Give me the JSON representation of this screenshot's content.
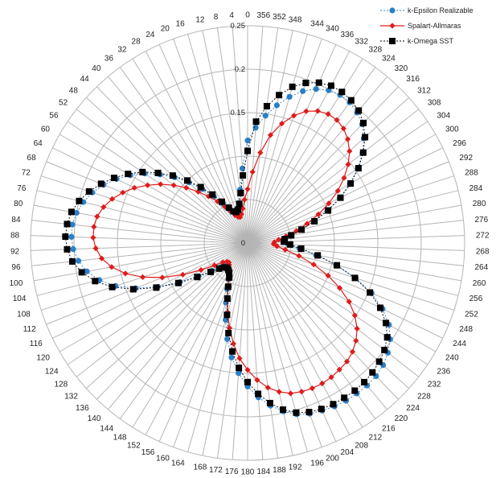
{
  "chart_data": {
    "type": "radar",
    "theta_direction": "counterclockwise",
    "theta_zero": "top",
    "angle_labels": [
      "0",
      "4",
      "8",
      "12",
      "16",
      "20",
      "24",
      "28",
      "32",
      "36",
      "40",
      "44",
      "48",
      "52",
      "56",
      "60",
      "64",
      "68",
      "72",
      "76",
      "80",
      "84",
      "88",
      "92",
      "96",
      "100",
      "104",
      "108",
      "112",
      "116",
      "120",
      "124",
      "128",
      "132",
      "136",
      "140",
      "144",
      "148",
      "152",
      "156",
      "160",
      "164",
      "168",
      "172",
      "176",
      "180",
      "184",
      "188",
      "192",
      "196",
      "200",
      "204",
      "208",
      "212",
      "216",
      "220",
      "224",
      "228",
      "232",
      "236",
      "240",
      "244",
      "248",
      "252",
      "256",
      "260",
      "264",
      "268",
      "272",
      "276",
      "280",
      "284",
      "288",
      "292",
      "296",
      "300",
      "304",
      "308",
      "312",
      "316",
      "320",
      "324",
      "328",
      "332",
      "336",
      "340",
      "344",
      "348",
      "352",
      "356"
    ],
    "radial_ticks": [
      0,
      0.05,
      0.1,
      0.15,
      0.2,
      0.25
    ],
    "radial_tick_labels": [
      "0",
      "",
      "",
      "0.15",
      "0.2",
      "0.25"
    ],
    "rlim": [
      0,
      0.25
    ],
    "grid": true,
    "legend_position": "top-right",
    "angles": [
      0,
      4,
      8,
      12,
      16,
      20,
      24,
      28,
      32,
      36,
      40,
      44,
      48,
      52,
      56,
      60,
      64,
      68,
      72,
      76,
      80,
      84,
      88,
      92,
      96,
      100,
      104,
      108,
      112,
      116,
      120,
      124,
      128,
      132,
      136,
      140,
      144,
      148,
      152,
      156,
      160,
      164,
      168,
      172,
      176,
      180,
      184,
      188,
      192,
      196,
      200,
      204,
      208,
      212,
      216,
      220,
      224,
      228,
      232,
      236,
      240,
      244,
      248,
      252,
      256,
      260,
      264,
      268,
      272,
      276,
      280,
      284,
      288,
      292,
      296,
      300,
      304,
      308,
      312,
      316,
      320,
      324,
      328,
      332,
      336,
      340,
      344,
      348,
      352,
      356
    ],
    "series": [
      {
        "name": "k-Epsilon Realizable",
        "color": "#2a7fc6",
        "marker": "circle",
        "line": "dotted",
        "values": [
          0.118,
          0.086,
          0.062,
          0.047,
          0.039,
          0.036,
          0.038,
          0.043,
          0.053,
          0.066,
          0.081,
          0.097,
          0.113,
          0.128,
          0.143,
          0.156,
          0.168,
          0.179,
          0.188,
          0.195,
          0.2,
          0.203,
          0.203,
          0.201,
          0.196,
          0.188,
          0.176,
          0.16,
          0.139,
          0.115,
          0.09,
          0.068,
          0.052,
          0.042,
          0.037,
          0.036,
          0.038,
          0.041,
          0.047,
          0.058,
          0.073,
          0.092,
          0.113,
          0.133,
          0.15,
          0.165,
          0.178,
          0.189,
          0.198,
          0.205,
          0.209,
          0.211,
          0.213,
          0.214,
          0.214,
          0.214,
          0.213,
          0.21,
          0.205,
          0.198,
          0.188,
          0.173,
          0.154,
          0.131,
          0.105,
          0.08,
          0.06,
          0.047,
          0.041,
          0.042,
          0.05,
          0.063,
          0.08,
          0.099,
          0.118,
          0.136,
          0.153,
          0.168,
          0.18,
          0.19,
          0.196,
          0.2,
          0.201,
          0.199,
          0.194,
          0.186,
          0.175,
          0.162,
          0.148,
          0.133
        ]
      },
      {
        "name": "Spalart-Allmaras",
        "color": "#e01b1b",
        "marker": "diamond",
        "line": "solid",
        "values": [
          0.062,
          0.05,
          0.04,
          0.034,
          0.031,
          0.032,
          0.035,
          0.041,
          0.049,
          0.059,
          0.07,
          0.082,
          0.095,
          0.108,
          0.121,
          0.133,
          0.145,
          0.155,
          0.164,
          0.171,
          0.176,
          0.178,
          0.178,
          0.175,
          0.169,
          0.159,
          0.145,
          0.127,
          0.106,
          0.083,
          0.062,
          0.046,
          0.036,
          0.032,
          0.031,
          0.033,
          0.036,
          0.04,
          0.047,
          0.056,
          0.068,
          0.083,
          0.1,
          0.117,
          0.133,
          0.146,
          0.158,
          0.168,
          0.175,
          0.18,
          0.182,
          0.183,
          0.183,
          0.182,
          0.18,
          0.178,
          0.174,
          0.168,
          0.16,
          0.149,
          0.135,
          0.118,
          0.1,
          0.08,
          0.061,
          0.044,
          0.034,
          0.03,
          0.031,
          0.036,
          0.045,
          0.058,
          0.072,
          0.088,
          0.104,
          0.12,
          0.134,
          0.147,
          0.158,
          0.166,
          0.172,
          0.175,
          0.175,
          0.172,
          0.166,
          0.156,
          0.143,
          0.127,
          0.105,
          0.082
        ]
      },
      {
        "name": "k-Omega SST",
        "color": "#000000",
        "marker": "square",
        "line": "dotted",
        "values": [
          0.106,
          0.078,
          0.058,
          0.046,
          0.04,
          0.038,
          0.04,
          0.046,
          0.056,
          0.069,
          0.084,
          0.1,
          0.116,
          0.131,
          0.146,
          0.159,
          0.171,
          0.182,
          0.192,
          0.2,
          0.206,
          0.209,
          0.21,
          0.208,
          0.203,
          0.194,
          0.181,
          0.164,
          0.142,
          0.117,
          0.092,
          0.07,
          0.054,
          0.044,
          0.039,
          0.037,
          0.038,
          0.04,
          0.045,
          0.055,
          0.068,
          0.086,
          0.106,
          0.126,
          0.144,
          0.16,
          0.174,
          0.186,
          0.196,
          0.203,
          0.207,
          0.209,
          0.21,
          0.21,
          0.21,
          0.209,
          0.207,
          0.204,
          0.2,
          0.194,
          0.184,
          0.17,
          0.152,
          0.13,
          0.106,
          0.082,
          0.062,
          0.049,
          0.042,
          0.043,
          0.051,
          0.064,
          0.081,
          0.1,
          0.119,
          0.137,
          0.154,
          0.169,
          0.182,
          0.192,
          0.199,
          0.203,
          0.205,
          0.205,
          0.202,
          0.196,
          0.187,
          0.174,
          0.159,
          0.14
        ]
      }
    ]
  }
}
